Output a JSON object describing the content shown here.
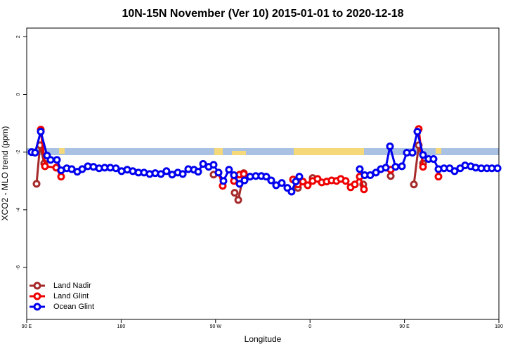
{
  "chart_data": {
    "type": "line",
    "title": "10N-15N November (Ver 10)   2015-01-01 to 2020-12-18",
    "xlabel": "Longitude",
    "ylabel": "XCO2 - MLO trend (ppm)",
    "xlim": [
      90,
      540
    ],
    "ylim": [
      -7.8,
      2.3
    ],
    "xticks": [
      {
        "value": 90,
        "label": "90 E"
      },
      180,
      {
        "value": 270,
        "label": "90 W"
      },
      0,
      {
        "value": 450,
        "label": "90 E"
      },
      180
    ],
    "xtick_values": [
      90,
      180,
      270,
      360,
      450,
      540
    ],
    "yticks": [
      2,
      0,
      -2,
      -4,
      -6
    ],
    "legend": "bottom-left",
    "series": [
      {
        "name": "Land Nadir",
        "color": "#a52a2a",
        "x": [
          99.4,
          102.7,
          106.7,
          null,
          268.1,
          null,
          288.2,
          291.6,
          296.9,
          null,
          348.5,
          null,
          362.5,
          null,
          410.7,
          null,
          436.9,
          null,
          459,
          463.6,
          467.7
        ],
        "values": [
          -3.1,
          -1.76,
          -2.39,
          null,
          -2.78,
          null,
          -3.41,
          -3.66,
          -2.73,
          null,
          -3.24,
          null,
          -2.9,
          null,
          -3.12,
          null,
          -2.83,
          null,
          -3.12,
          -1.76,
          -2.39
        ]
      },
      {
        "name": "Land Glint",
        "color": "#ee0000",
        "x": [
          103.4,
          107.4,
          118.1,
          122.8,
          null,
          272.8,
          276.8,
          null,
          287.5,
          292.9,
          296.9,
          null,
          343.8,
          348.5,
          353.2,
          357.8,
          362.5,
          367.2,
          371.2,
          375.9,
          380.6,
          385.3,
          389.3,
          394,
          398.7,
          402.7,
          407.4,
          411.4,
          null,
          436.9,
          null,
          463.6,
          467.7,
          null,
          482.4
        ],
        "values": [
          -1.22,
          -2.49,
          -2.54,
          -2.85,
          null,
          -2.71,
          -3.17,
          null,
          -3.0,
          -2.78,
          -2.76,
          null,
          -2.95,
          -3.12,
          -3.02,
          -3.15,
          -3.0,
          -2.93,
          -3.05,
          -3.02,
          -2.98,
          -3.0,
          -2.93,
          -3.0,
          -3.22,
          -3.12,
          -2.85,
          -3.29,
          null,
          -2.61,
          null,
          -1.2,
          -2.51,
          null,
          -2.85
        ]
      },
      {
        "name": "Ocean Glint",
        "color": "#0000ee",
        "x": [
          94.7,
          98,
          103.4,
          109.4,
          112.8,
          118.8,
          122.8,
          128.2,
          132.9,
          138.2,
          142.9,
          148.3,
          153.6,
          159,
          164.3,
          169.7,
          175,
          180.4,
          185.8,
          191.1,
          196.5,
          201.8,
          207.2,
          212.5,
          217.9,
          223.2,
          228.6,
          234,
          238.7,
          244,
          249.4,
          253.4,
          258.1,
          263.4,
          268.1,
          272.8,
          277.5,
          282.8,
          287.5,
          292.9,
          297.6,
          302.9,
          308.3,
          313.6,
          318.3,
          323,
          327.7,
          333.1,
          338.4,
          342.4,
          346.5,
          349.8,
          null,
          407.4,
          412.1,
          417.4,
          422.8,
          427.5,
          432.2,
          436.2,
          441.5,
          447.6,
          452.3,
          457.6,
          462.3,
          467.7,
          473,
          477.7,
          482.4,
          487.7,
          493.1,
          497.8,
          503.1,
          507.8,
          513.2,
          517.9,
          523.2,
          528.6,
          533.3,
          538.7
        ],
        "values": [
          -2.0,
          -2.02,
          -1.29,
          -2.12,
          -2.27,
          -2.27,
          -2.63,
          -2.56,
          -2.59,
          -2.68,
          -2.59,
          -2.49,
          -2.51,
          -2.56,
          -2.54,
          -2.54,
          -2.56,
          -2.66,
          -2.61,
          -2.66,
          -2.71,
          -2.71,
          -2.76,
          -2.73,
          -2.76,
          -2.66,
          -2.78,
          -2.71,
          -2.76,
          -2.59,
          -2.61,
          -2.68,
          -2.41,
          -2.51,
          -2.44,
          -2.71,
          -3.0,
          -2.61,
          -2.8,
          -3.1,
          -2.98,
          -2.85,
          -2.83,
          -2.83,
          -2.85,
          -2.98,
          -3.15,
          -3.07,
          -3.24,
          -3.37,
          -3.02,
          -2.85,
          null,
          -2.59,
          -2.8,
          -2.8,
          -2.71,
          -2.59,
          -2.54,
          -1.8,
          -2.51,
          -2.49,
          -2.02,
          -2.02,
          -1.29,
          -2.1,
          -2.24,
          -2.24,
          -2.59,
          -2.56,
          -2.56,
          -2.66,
          -2.56,
          -2.46,
          -2.49,
          -2.54,
          -2.56,
          -2.56,
          -2.56,
          -2.56
        ]
      }
    ]
  }
}
